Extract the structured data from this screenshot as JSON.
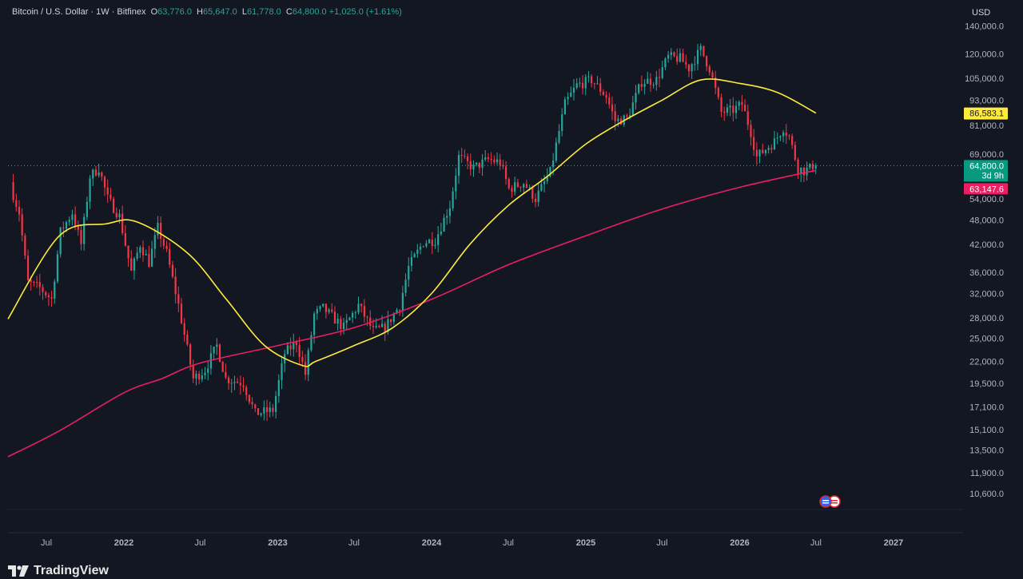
{
  "header": {
    "symbol": "Bitcoin / U.S. Dollar · 1W · Bitfinex",
    "open_label": "O",
    "open_value": "63,776.0",
    "high_label": "H",
    "high_value": "65,647.0",
    "low_label": "L",
    "low_value": "61,778.0",
    "close_label": "C",
    "close_value": "64,800.0",
    "change_value": "+1,025.0 (+1.61%)"
  },
  "currency": "USD",
  "brand": "TradingView",
  "colors": {
    "background": "#131722",
    "up": "#26a69a",
    "down": "#f23645",
    "ma_short": "#ffeb3b",
    "ma_long": "#e91e63",
    "grid": "#1e222d"
  },
  "chart_data": {
    "type": "candlestick",
    "scale": "log",
    "ylim": [
      9800,
      148000
    ],
    "y_ticks": [
      "140,000.0",
      "120,000.0",
      "105,000.0",
      "93,000.0",
      "81,000.0",
      "69,000.0",
      "54,000.0",
      "48,000.0",
      "42,000.0",
      "36,000.0",
      "32,000.0",
      "28,000.0",
      "25,000.0",
      "22,000.0",
      "19,500.0",
      "17,100.0",
      "15,100.0",
      "13,500.0",
      "11,900.0",
      "10,600.0"
    ],
    "x_ticks": [
      "Jul",
      "2022",
      "Jul",
      "2023",
      "Jul",
      "2024",
      "Jul",
      "2025",
      "Jul",
      "2026",
      "Jul",
      "2027"
    ],
    "x_tick_dates": [
      "2021-07-01",
      "2022-01-01",
      "2022-07-01",
      "2023-01-01",
      "2023-07-01",
      "2024-01-01",
      "2024-07-01",
      "2025-01-01",
      "2025-07-01",
      "2026-01-01",
      "2026-07-01",
      "2027-01-01"
    ],
    "x_range_dates": [
      "2021-04-01",
      "2027-06-15"
    ],
    "price_path": [
      [
        "2021-04-10",
        58000
      ],
      [
        "2021-05-01",
        50000
      ],
      [
        "2021-05-22",
        34000
      ],
      [
        "2021-06-19",
        33000
      ],
      [
        "2021-07-17",
        31000
      ],
      [
        "2021-08-07",
        45000
      ],
      [
        "2021-09-04",
        50000
      ],
      [
        "2021-09-25",
        42000
      ],
      [
        "2021-10-16",
        61000
      ],
      [
        "2021-11-06",
        64000
      ],
      [
        "2021-11-27",
        54000
      ],
      [
        "2021-12-25",
        49000
      ],
      [
        "2022-01-22",
        36000
      ],
      [
        "2022-02-12",
        42000
      ],
      [
        "2022-03-05",
        38000
      ],
      [
        "2022-03-26",
        46000
      ],
      [
        "2022-04-16",
        40000
      ],
      [
        "2022-05-14",
        30000
      ],
      [
        "2022-06-18",
        20000
      ],
      [
        "2022-07-16",
        21000
      ],
      [
        "2022-08-13",
        24000
      ],
      [
        "2022-09-03",
        20000
      ],
      [
        "2022-10-15",
        19500
      ],
      [
        "2022-11-12",
        16500
      ],
      [
        "2022-12-24",
        16800
      ],
      [
        "2023-01-21",
        23000
      ],
      [
        "2023-02-18",
        24500
      ],
      [
        "2023-03-11",
        20500
      ],
      [
        "2023-04-01",
        28500
      ],
      [
        "2023-04-22",
        29500
      ],
      [
        "2023-06-10",
        26500
      ],
      [
        "2023-07-15",
        30000
      ],
      [
        "2023-08-19",
        26000
      ],
      [
        "2023-09-16",
        26500
      ],
      [
        "2023-10-21",
        30000
      ],
      [
        "2023-11-11",
        37000
      ],
      [
        "2023-12-16",
        42500
      ],
      [
        "2024-01-13",
        43000
      ],
      [
        "2024-02-17",
        52000
      ],
      [
        "2024-03-09",
        68000
      ],
      [
        "2024-04-13",
        64000
      ],
      [
        "2024-05-18",
        67000
      ],
      [
        "2024-06-15",
        66000
      ],
      [
        "2024-07-06",
        57000
      ],
      [
        "2024-08-10",
        59000
      ],
      [
        "2024-09-07",
        54000
      ],
      [
        "2024-10-12",
        62500
      ],
      [
        "2024-11-16",
        91000
      ],
      [
        "2024-12-14",
        101000
      ],
      [
        "2025-01-18",
        104000
      ],
      [
        "2025-02-22",
        95000
      ],
      [
        "2025-03-15",
        83000
      ],
      [
        "2025-04-12",
        84000
      ],
      [
        "2025-05-17",
        103000
      ],
      [
        "2025-06-21",
        104000
      ],
      [
        "2025-07-19",
        118000
      ],
      [
        "2025-08-16",
        117000
      ],
      [
        "2025-09-06",
        111000
      ],
      [
        "2025-10-04",
        123000
      ],
      [
        "2025-10-25",
        111000
      ],
      [
        "2025-11-22",
        87000
      ],
      [
        "2025-12-20",
        88000
      ],
      [
        "2026-01-10",
        91000
      ],
      [
        "2026-01-31",
        78000
      ],
      [
        "2026-02-14",
        68000
      ],
      [
        "2026-03-07",
        71000
      ],
      [
        "2026-03-28",
        74000
      ],
      [
        "2026-04-18",
        80000
      ],
      [
        "2026-05-02",
        76000
      ],
      [
        "2026-05-23",
        64000
      ],
      [
        "2026-06-06",
        63000
      ],
      [
        "2026-06-20",
        63776
      ],
      [
        "2026-06-27",
        64800
      ]
    ],
    "last": {
      "open": 63776,
      "high": 65647,
      "low": 61778,
      "close": 64800
    },
    "ma_short": [
      [
        "2021-04-01",
        27800
      ],
      [
        "2021-08-01",
        44000
      ],
      [
        "2021-11-20",
        47000
      ],
      [
        "2022-02-01",
        47500
      ],
      [
        "2022-06-01",
        40000
      ],
      [
        "2022-09-01",
        31000
      ],
      [
        "2022-12-01",
        24000
      ],
      [
        "2023-03-01",
        21500
      ],
      [
        "2023-04-01",
        22000
      ],
      [
        "2023-07-01",
        24000
      ],
      [
        "2023-10-01",
        26500
      ],
      [
        "2024-01-01",
        32000
      ],
      [
        "2024-04-01",
        42000
      ],
      [
        "2024-07-01",
        52000
      ],
      [
        "2024-10-01",
        61000
      ],
      [
        "2025-01-01",
        73000
      ],
      [
        "2025-04-01",
        83000
      ],
      [
        "2025-07-01",
        93000
      ],
      [
        "2025-10-01",
        104000
      ],
      [
        "2026-01-01",
        102000
      ],
      [
        "2026-04-01",
        97000
      ],
      [
        "2026-07-01",
        86583.1
      ]
    ],
    "ma_long": [
      [
        "2021-04-01",
        13000
      ],
      [
        "2021-08-01",
        15000
      ],
      [
        "2022-01-01",
        18500
      ],
      [
        "2022-04-01",
        20000
      ],
      [
        "2022-07-01",
        21800
      ],
      [
        "2023-01-01",
        24000
      ],
      [
        "2023-07-01",
        26500
      ],
      [
        "2024-01-01",
        31000
      ],
      [
        "2024-07-01",
        37500
      ],
      [
        "2025-01-01",
        44000
      ],
      [
        "2025-07-01",
        51000
      ],
      [
        "2026-01-01",
        57500
      ],
      [
        "2026-07-01",
        63147.6
      ]
    ],
    "labels": {
      "ma_short_value": "86,583.1",
      "close_value": "64,800.0",
      "countdown": "3d 9h",
      "ma_long_value": "63,147.6"
    }
  }
}
